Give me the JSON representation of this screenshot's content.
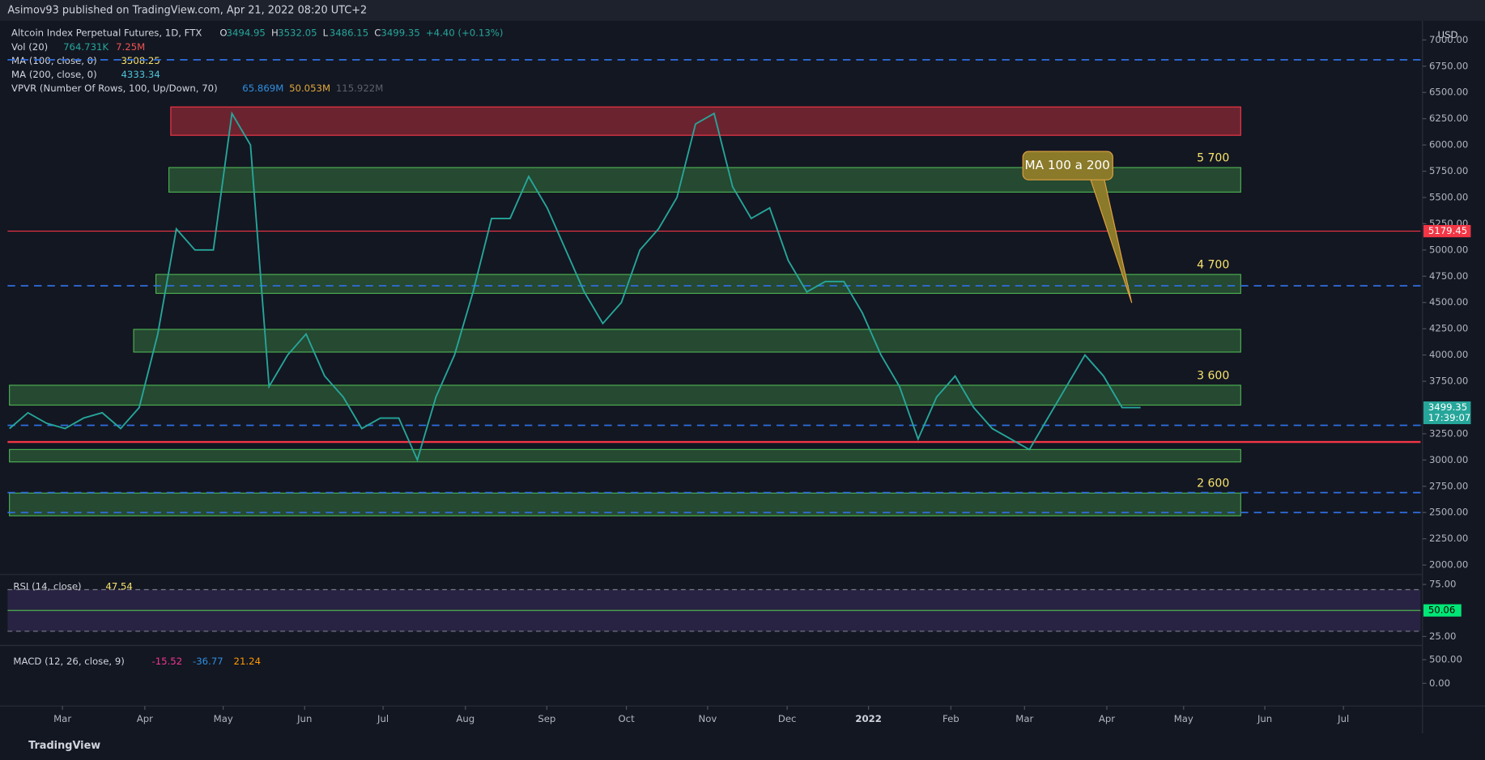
{
  "header": {
    "text": "Asimov93 published on TradingView.com, Apr 21, 2022 08:20 UTC+2"
  },
  "footer": {
    "text": "TradingView"
  },
  "chart_data": {
    "type": "line",
    "title": "Altcoin Index Perpetual Futures, 1D, FTX",
    "ohlc": [
      {
        "label": "O",
        "value": "3494.95"
      },
      {
        "label": "H",
        "value": "3532.05"
      },
      {
        "label": "L",
        "value": "3486.15"
      },
      {
        "label": "C",
        "value": "3499.35"
      },
      {
        "label": "",
        "value": "+4.40 (+0.13%)"
      }
    ],
    "indicators": [
      {
        "name": "Vol (20)",
        "values": [
          "764.731K",
          "7.25M"
        ],
        "colors": [
          "#26a69a",
          "#ef5350"
        ]
      },
      {
        "name": "MA (100, close, 0)",
        "values": [
          "3508.25"
        ],
        "colors": [
          "#f7e36d"
        ]
      },
      {
        "name": "MA (200, close, 0)",
        "values": [
          "4333.34"
        ],
        "colors": [
          "#4fc3d8"
        ]
      },
      {
        "name": "VPVR (Number Of Rows, 100, Up/Down, 70)",
        "values": [
          "65.869M",
          "50.053M",
          "115.922M"
        ],
        "colors": [
          "#2f8fe0",
          "#e0a83a",
          "#5d606b"
        ]
      }
    ],
    "currency": "USD",
    "x": [
      0,
      1,
      2,
      3,
      4,
      5,
      6,
      7,
      8,
      9,
      10,
      11,
      12,
      13,
      14,
      15,
      16,
      17,
      18,
      19,
      20,
      21,
      22,
      23,
      24,
      25,
      26,
      27,
      28,
      29,
      30,
      31,
      32,
      33,
      34,
      35,
      36,
      37,
      38,
      39,
      40,
      41,
      42,
      43,
      44,
      45,
      46,
      47,
      48,
      49,
      50,
      51,
      52,
      53,
      54,
      55,
      56,
      57,
      58,
      59,
      60,
      61
    ],
    "series": [
      {
        "name": "Close",
        "color": "#26a69a",
        "values": [
          3300,
          3450,
          3350,
          3300,
          3400,
          3450,
          3300,
          3500,
          4200,
          5200,
          5000,
          5000,
          6300,
          6000,
          3700,
          4000,
          4200,
          3800,
          3600,
          3300,
          3400,
          3400,
          3000,
          3600,
          4000,
          4600,
          5300,
          5300,
          5700,
          5400,
          5000,
          4600,
          4300,
          4500,
          5000,
          5200,
          5500,
          6200,
          6300,
          5600,
          5300,
          5400,
          4900,
          4600,
          4700,
          4700,
          4400,
          4000,
          3700,
          3200,
          3600,
          3800,
          3500,
          3300,
          3200,
          3100,
          3400,
          3700,
          4000,
          3800,
          3500,
          3499.35
        ]
      }
    ],
    "xlim": [
      -0.1,
      76.1
    ],
    "xticks": [
      {
        "value": 2.86,
        "label": "Mar"
      },
      {
        "value": 7.3,
        "label": "Apr"
      },
      {
        "value": 11.53,
        "label": "May"
      },
      {
        "value": 15.92,
        "label": "Jun"
      },
      {
        "value": 20.15,
        "label": "Jul"
      },
      {
        "value": 24.59,
        "label": "Aug"
      },
      {
        "value": 28.98,
        "label": "Sep"
      },
      {
        "value": 33.27,
        "label": "Oct"
      },
      {
        "value": 37.65,
        "label": "Nov"
      },
      {
        "value": 41.94,
        "label": "Dec"
      },
      {
        "value": 46.33,
        "label": "2022"
      },
      {
        "value": 50.77,
        "label": "Feb"
      },
      {
        "value": 54.74,
        "label": "Mar"
      },
      {
        "value": 59.18,
        "label": "Apr"
      },
      {
        "value": 63.32,
        "label": "May"
      },
      {
        "value": 67.7,
        "label": "Jun"
      },
      {
        "value": 71.94,
        "label": "Jul"
      }
    ],
    "ylim": [
      1928,
      7128
    ],
    "yticks": [
      {
        "value": 2000,
        "label": "2000.00"
      },
      {
        "value": 2250,
        "label": "2250.00"
      },
      {
        "value": 2500,
        "label": "2500.00"
      },
      {
        "value": 2750,
        "label": "2750.00"
      },
      {
        "value": 3000,
        "label": "3000.00"
      },
      {
        "value": 3250,
        "label": "3250.00"
      },
      {
        "value": 3750,
        "label": "3750.00"
      },
      {
        "value": 4000,
        "label": "4000.00"
      },
      {
        "value": 4250,
        "label": "4250.00"
      },
      {
        "value": 4500,
        "label": "4500.00"
      },
      {
        "value": 4750,
        "label": "4750.00"
      },
      {
        "value": 5000,
        "label": "5000.00"
      },
      {
        "value": 5250,
        "label": "5250.00"
      },
      {
        "value": 5500,
        "label": "5500.00"
      },
      {
        "value": 5750,
        "label": "5750.00"
      },
      {
        "value": 6000,
        "label": "6000.00"
      },
      {
        "value": 6250,
        "label": "6250.00"
      },
      {
        "value": 6500,
        "label": "6500.00"
      },
      {
        "value": 6750,
        "label": "6750.00"
      },
      {
        "value": 7000,
        "label": "7000.00"
      }
    ],
    "zones": [
      {
        "low": 6092,
        "high": 6362,
        "start": 8.7,
        "end": 66.4,
        "color": "#f2364566"
      },
      {
        "low": 5551,
        "high": 5785,
        "start": 8.6,
        "end": 66.4,
        "color": "#4caf5055",
        "label": "5 700"
      },
      {
        "low": 4587,
        "high": 4767,
        "start": 7.9,
        "end": 66.4,
        "color": "#4caf5055",
        "label": "4 700"
      },
      {
        "low": 4028,
        "high": 4244,
        "start": 6.7,
        "end": 66.4,
        "color": "#4caf5055"
      },
      {
        "low": 3523,
        "high": 3712,
        "start": 0,
        "end": 66.4,
        "color": "#4caf5055",
        "label": "3 600"
      },
      {
        "low": 2982,
        "high": 3100,
        "start": 0,
        "end": 66.4,
        "color": "#4caf5055"
      },
      {
        "low": 2469,
        "high": 2685,
        "start": 0,
        "end": 66.4,
        "color": "#4caf5055",
        "label": "2 600"
      }
    ],
    "red_lines": [
      5179.45,
      3172
    ],
    "dashed_levels": [
      6811,
      4659,
      3330,
      2690,
      2500
    ],
    "price_tags": [
      {
        "value": 5179.45,
        "label": "5179.45",
        "color": "#f23645"
      },
      {
        "value": 3499.35,
        "label": "3499.35",
        "sub": "17:39:07",
        "color": "#26a69a"
      }
    ],
    "annotation": "MA 100 a 200",
    "rsi": {
      "label": "RSI (14, close)",
      "value": "47.54",
      "ylim": [
        20,
        80
      ],
      "band": [
        30,
        70
      ],
      "mid": 50,
      "yticks": [
        {
          "value": 25,
          "label": "25.00"
        },
        {
          "value": 75,
          "label": "75.00"
        }
      ],
      "tag": {
        "value": 50.06,
        "label": "50.06"
      }
    },
    "macd": {
      "label": "MACD (12, 26, close, 9)",
      "values": [
        "-15.52",
        "-36.77",
        "21.24"
      ],
      "colors": [
        "#f23690",
        "#2f8fe0",
        "#ff9800"
      ],
      "ylim": [
        -460,
        740
      ],
      "yticks": [
        {
          "value": 0,
          "label": "0.00"
        },
        {
          "value": 500,
          "label": "500.00"
        }
      ]
    }
  }
}
